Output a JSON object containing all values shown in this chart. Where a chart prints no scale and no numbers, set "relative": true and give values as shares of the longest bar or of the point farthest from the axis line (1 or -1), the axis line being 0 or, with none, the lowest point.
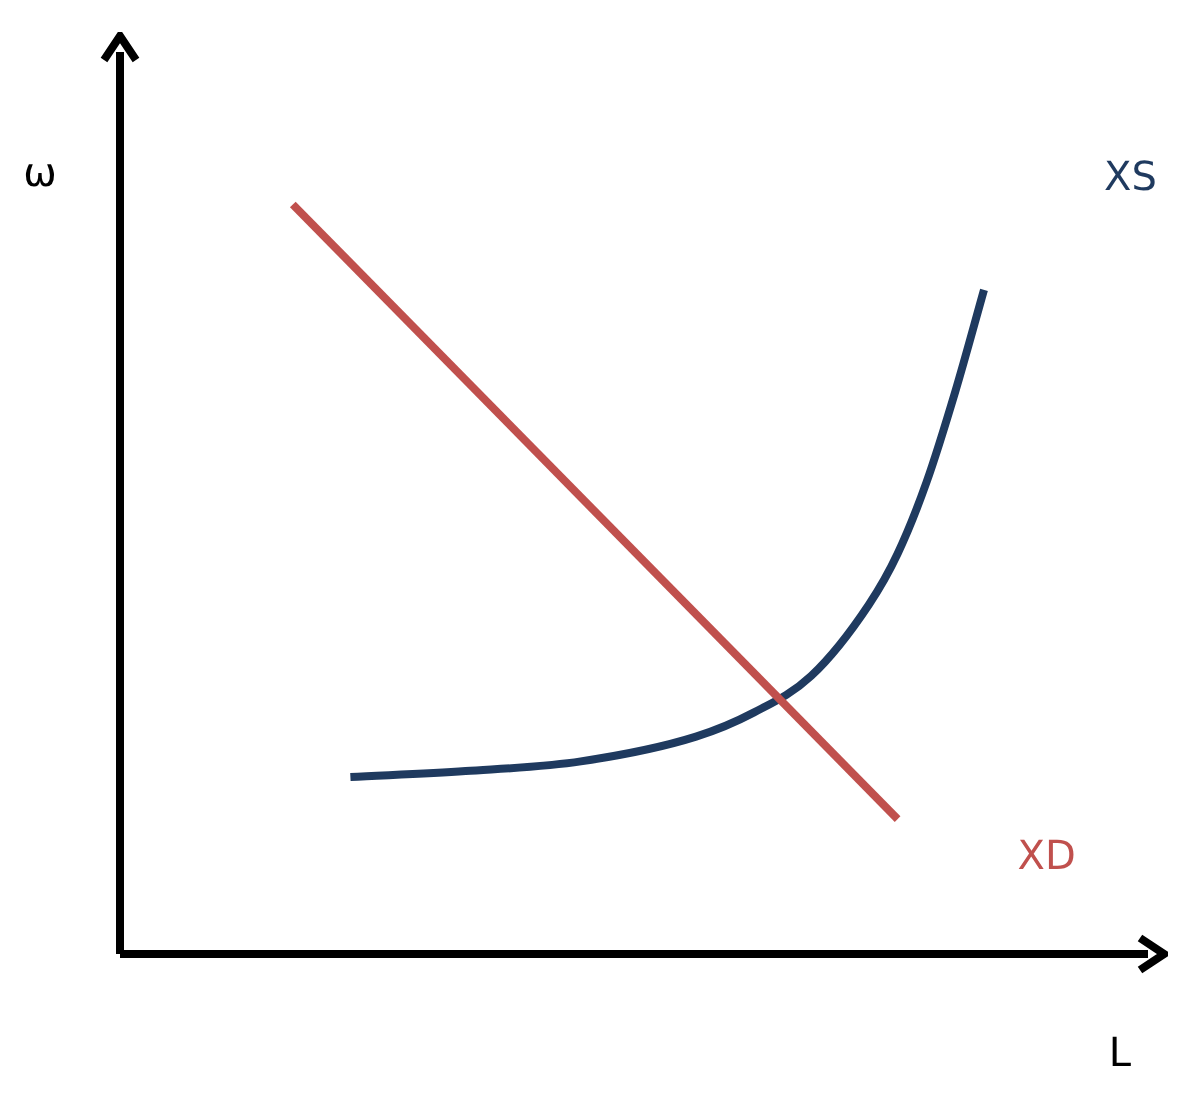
{
  "chart_data": {
    "type": "line",
    "relative": true,
    "xlabel": "L",
    "ylabel": "ω",
    "legend": false,
    "marker": "none",
    "categories": [
      null,
      null,
      null,
      null,
      null,
      null,
      null,
      null,
      null,
      null,
      null,
      null,
      null,
      null,
      null,
      null,
      null,
      null,
      null,
      null,
      null,
      null,
      null,
      null,
      null,
      null,
      null,
      null,
      null,
      null,
      null,
      null,
      null,
      null,
      null,
      null
    ],
    "series": [
      {
        "name": "XD",
        "color": "#c0504d",
        "values": [
          null,
          null,
          null,
          null,
          null,
          null,
          1,
          null,
          null,
          null,
          null,
          null,
          null,
          null,
          null,
          null,
          null,
          null,
          null,
          null,
          null,
          null,
          null,
          null,
          null,
          null,
          null,
          0.18,
          null,
          null,
          null,
          null,
          null,
          null,
          null,
          null
        ]
      },
      {
        "name": "XS",
        "color": "#1f3a5f",
        "values": [
          null,
          null,
          null,
          null,
          null,
          null,
          null,
          null,
          0.236,
          null,
          null,
          null,
          0.244,
          null,
          null,
          null,
          0.257,
          null,
          null,
          null,
          0.29,
          null,
          0.322,
          null,
          0.371,
          null,
          0.466,
          0.534,
          0.629,
          0.75,
          0.886,
          null,
          null,
          null,
          null,
          null
        ]
      }
    ]
  }
}
